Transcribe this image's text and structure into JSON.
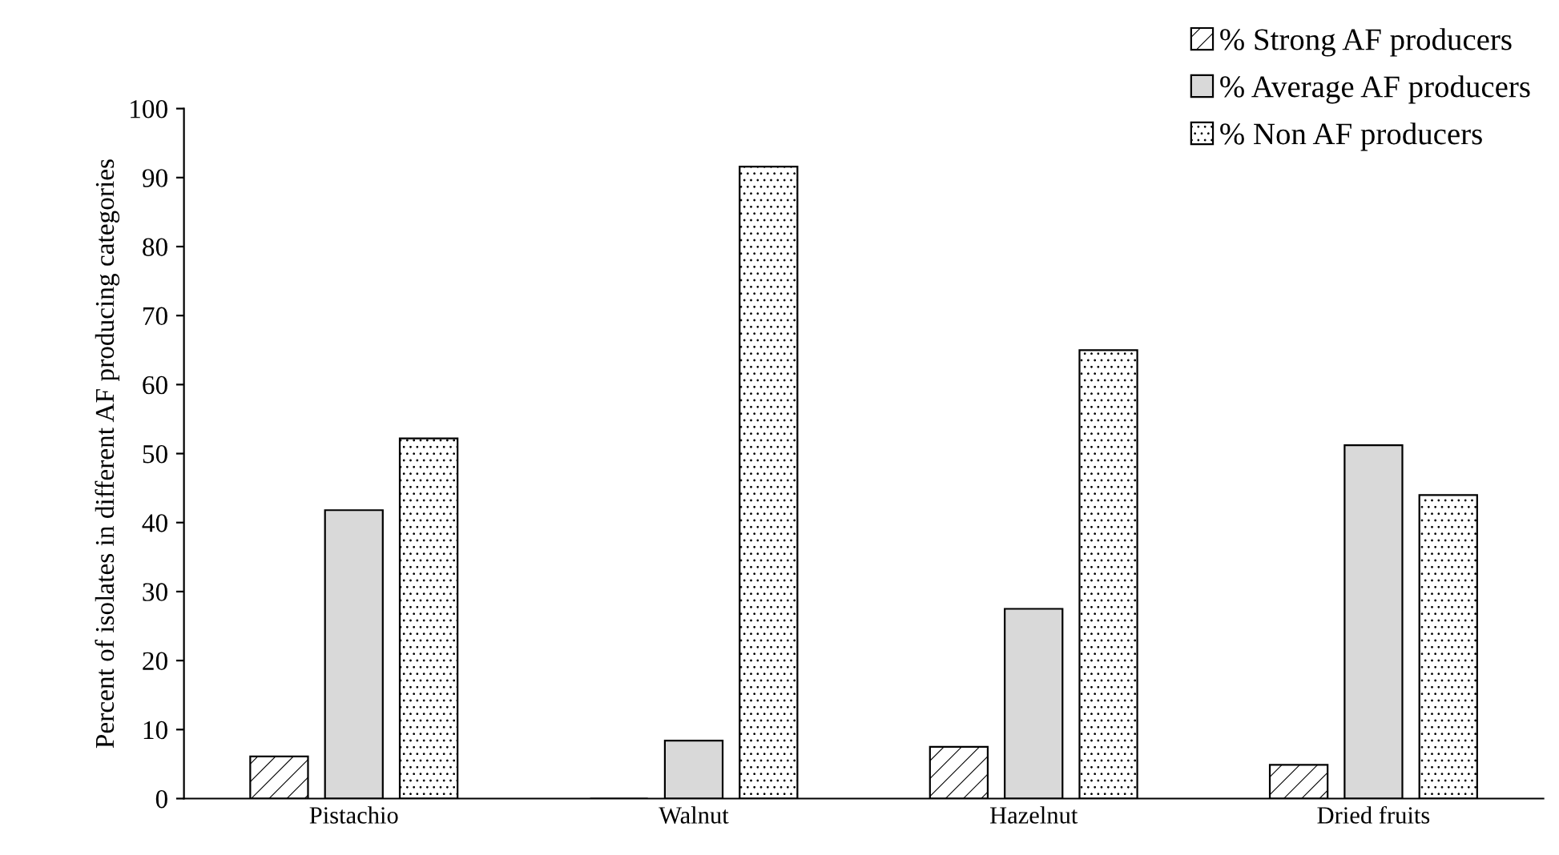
{
  "chart_data": {
    "type": "bar",
    "ylabel": "Percent of isolates in different AF producing categories",
    "categories": [
      "Pistachio",
      "Walnut",
      "Hazelnut",
      "Dried fruits"
    ],
    "series": [
      {
        "name": "% Strong AF producers",
        "color": "#000000",
        "values": [
          6.1,
          0,
          7.5,
          4.9
        ]
      },
      {
        "name": "% Average AF producers",
        "color": "#d9d9d9",
        "values": [
          41.8,
          8.4,
          27.5,
          51.2
        ]
      },
      {
        "name": "% Non AF producers",
        "color": "#000000",
        "values": [
          52.2,
          91.6,
          65.0,
          44.0
        ]
      }
    ],
    "ylim": [
      0,
      100
    ],
    "yticks": [
      0,
      10,
      20,
      30,
      40,
      50,
      60,
      70,
      80,
      90,
      100
    ],
    "grid": false,
    "legend": "top right"
  }
}
